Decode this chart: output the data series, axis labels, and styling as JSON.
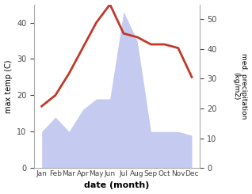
{
  "months": [
    "Jan",
    "Feb",
    "Mar",
    "Apr",
    "May",
    "Jun",
    "Jul",
    "Aug",
    "Sep",
    "Oct",
    "Nov",
    "Dec"
  ],
  "max_temp": [
    17,
    20,
    26,
    33,
    40,
    45,
    37,
    36,
    34,
    34,
    33,
    25
  ],
  "precipitation_left_scale": [
    10,
    14,
    10,
    16,
    19,
    19,
    43,
    35,
    10,
    10,
    10,
    9
  ],
  "temp_ylim": [
    0,
    45
  ],
  "precip_ylim": [
    0,
    55
  ],
  "temp_yticks": [
    0,
    10,
    20,
    30,
    40
  ],
  "precip_yticks": [
    0,
    10,
    20,
    30,
    40,
    50
  ],
  "temp_color": "#c0392b",
  "precip_fill_color": "#c5caf0",
  "precip_edge_color": "#b0b8e8",
  "xlabel": "date (month)",
  "ylabel_left": "max temp (C)",
  "ylabel_right": "med. precipitation\n(kg/m2)",
  "bg_color": "#ffffff",
  "fig_bg_color": "#ffffff"
}
